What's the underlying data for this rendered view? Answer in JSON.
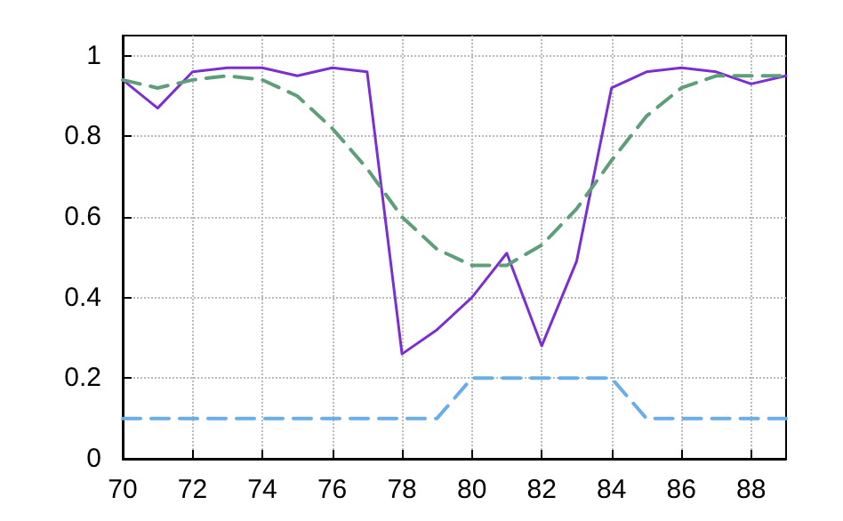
{
  "chart_data": {
    "type": "line",
    "x": [
      70,
      71,
      72,
      73,
      74,
      75,
      76,
      77,
      78,
      79,
      80,
      81,
      82,
      83,
      84,
      85,
      86,
      87,
      88,
      89
    ],
    "series": [
      {
        "color": "#7b2fd0",
        "line_style": "solid",
        "values": [
          0.94,
          0.87,
          0.96,
          0.97,
          0.97,
          0.95,
          0.97,
          0.96,
          0.26,
          0.32,
          0.4,
          0.51,
          0.28,
          0.49,
          0.92,
          0.96,
          0.97,
          0.96,
          0.93,
          0.95
        ]
      },
      {
        "color": "#5f9e7a",
        "line_style": "dashed",
        "values": [
          0.94,
          0.92,
          0.94,
          0.95,
          0.94,
          0.9,
          0.82,
          0.72,
          0.6,
          0.52,
          0.48,
          0.48,
          0.53,
          0.62,
          0.74,
          0.85,
          0.92,
          0.95,
          0.95,
          0.95
        ]
      },
      {
        "color": "#6aaee8",
        "line_style": "dashed",
        "values": [
          0.1,
          0.1,
          0.1,
          0.1,
          0.1,
          0.1,
          0.1,
          0.1,
          0.1,
          0.1,
          0.2,
          0.2,
          0.2,
          0.2,
          0.2,
          0.1,
          0.1,
          0.1,
          0.1,
          0.1
        ]
      }
    ],
    "xlim": [
      70,
      89
    ],
    "xticks": [
      70,
      72,
      74,
      76,
      78,
      80,
      82,
      84,
      86,
      88
    ],
    "ylim": [
      0,
      1.05
    ],
    "yticks": [
      0,
      0.2,
      0.4,
      0.6,
      0.8,
      1
    ],
    "grid": true,
    "marker": "none"
  }
}
